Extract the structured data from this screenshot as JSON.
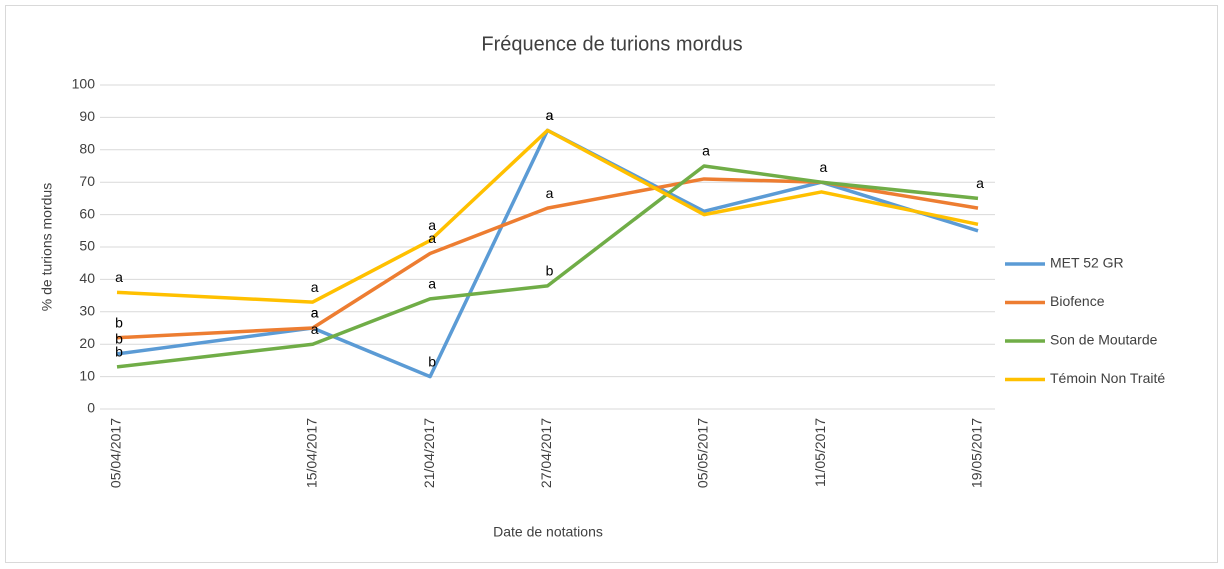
{
  "chart_data": {
    "type": "line",
    "title": "Fréquence de turions mordus",
    "x_label": "Date de notations",
    "y_label": "% de turions mordus",
    "x": [
      "05/04/2017",
      "15/04/2017",
      "21/04/2017",
      "27/04/2017",
      "05/05/2017",
      "11/05/2017",
      "19/05/2017"
    ],
    "xlim": [
      "05/04/2017",
      "19/05/2017"
    ],
    "ylim": [
      0,
      100
    ],
    "yticks": [
      0,
      10,
      20,
      30,
      40,
      50,
      60,
      70,
      80,
      90,
      100
    ],
    "grid": true,
    "legend": "right",
    "series": [
      {
        "name": "MET 52 GR",
        "color": "#5b9bd5",
        "values": [
          17,
          25,
          10,
          86,
          61,
          70,
          55
        ],
        "letters": [
          "b",
          "a",
          "b",
          "a",
          null,
          "a",
          null
        ]
      },
      {
        "name": "Biofence",
        "color": "#ed7d31",
        "values": [
          22,
          25,
          48,
          62,
          71,
          70,
          62
        ],
        "letters": [
          "b",
          "a",
          "a",
          "a",
          null,
          null,
          null
        ]
      },
      {
        "name": "Son de Moutarde",
        "color": "#70ad47",
        "values": [
          13,
          20,
          34,
          38,
          75,
          70,
          65
        ],
        "letters": [
          "b",
          "a",
          "a",
          "b",
          "a",
          null,
          "a"
        ]
      },
      {
        "name": "Témoin Non Traité",
        "color": "#ffc000",
        "values": [
          36,
          33,
          52,
          86,
          60,
          67,
          57
        ],
        "letters": [
          "a",
          "a",
          "a",
          "a",
          null,
          null,
          null
        ]
      }
    ]
  }
}
